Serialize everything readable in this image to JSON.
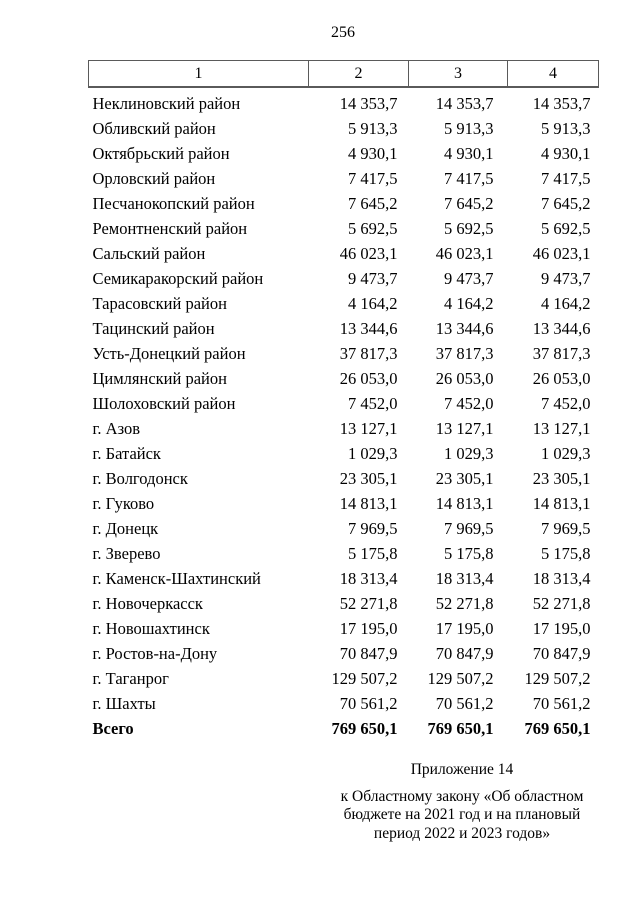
{
  "page": {
    "number": "256"
  },
  "table": {
    "headers": [
      "1",
      "2",
      "3",
      "4"
    ],
    "rows": [
      {
        "name": "Неклиновский район",
        "values": [
          "14 353,7",
          "14 353,7",
          "14 353,7"
        ]
      },
      {
        "name": "Обливский район",
        "values": [
          "5 913,3",
          "5 913,3",
          "5 913,3"
        ]
      },
      {
        "name": "Октябрьский район",
        "values": [
          "4 930,1",
          "4 930,1",
          "4 930,1"
        ]
      },
      {
        "name": "Орловский район",
        "values": [
          "7 417,5",
          "7 417,5",
          "7 417,5"
        ]
      },
      {
        "name": "Песчанокопский район",
        "values": [
          "7 645,2",
          "7 645,2",
          "7 645,2"
        ]
      },
      {
        "name": "Ремонтненский район",
        "values": [
          "5 692,5",
          "5 692,5",
          "5 692,5"
        ]
      },
      {
        "name": "Сальский район",
        "values": [
          "46 023,1",
          "46 023,1",
          "46 023,1"
        ]
      },
      {
        "name": "Семикаракорский район",
        "values": [
          "9 473,7",
          "9 473,7",
          "9 473,7"
        ]
      },
      {
        "name": "Тарасовский район",
        "values": [
          "4 164,2",
          "4 164,2",
          "4 164,2"
        ]
      },
      {
        "name": "Тацинский район",
        "values": [
          "13 344,6",
          "13 344,6",
          "13 344,6"
        ]
      },
      {
        "name": "Усть-Донецкий район",
        "values": [
          "37 817,3",
          "37 817,3",
          "37 817,3"
        ]
      },
      {
        "name": "Цимлянский район",
        "values": [
          "26 053,0",
          "26 053,0",
          "26 053,0"
        ]
      },
      {
        "name": "Шолоховский район",
        "values": [
          "7 452,0",
          "7 452,0",
          "7 452,0"
        ]
      },
      {
        "name": "г. Азов",
        "values": [
          "13 127,1",
          "13 127,1",
          "13 127,1"
        ]
      },
      {
        "name": "г. Батайск",
        "values": [
          "1 029,3",
          "1 029,3",
          "1 029,3"
        ]
      },
      {
        "name": "г. Волгодонск",
        "values": [
          "23 305,1",
          "23 305,1",
          "23 305,1"
        ]
      },
      {
        "name": "г. Гуково",
        "values": [
          "14 813,1",
          "14 813,1",
          "14 813,1"
        ]
      },
      {
        "name": "г. Донецк",
        "values": [
          "7 969,5",
          "7 969,5",
          "7 969,5"
        ]
      },
      {
        "name": "г. Зверево",
        "values": [
          "5 175,8",
          "5 175,8",
          "5 175,8"
        ]
      },
      {
        "name": "г. Каменск-Шахтинский",
        "values": [
          "18 313,4",
          "18 313,4",
          "18 313,4"
        ]
      },
      {
        "name": "г. Новочеркасск",
        "values": [
          "52 271,8",
          "52 271,8",
          "52 271,8"
        ]
      },
      {
        "name": "г. Новошахтинск",
        "values": [
          "17 195,0",
          "17 195,0",
          "17 195,0"
        ]
      },
      {
        "name": "г. Ростов-на-Дону",
        "values": [
          "70 847,9",
          "70 847,9",
          "70 847,9"
        ]
      },
      {
        "name": "г. Таганрог",
        "values": [
          "129 507,2",
          "129 507,2",
          "129 507,2"
        ]
      },
      {
        "name": "г. Шахты",
        "values": [
          "70 561,2",
          "70 561,2",
          "70 561,2"
        ]
      }
    ],
    "total": {
      "name": "Всего",
      "values": [
        "769 650,1",
        "769 650,1",
        "769 650,1"
      ]
    }
  },
  "footer": {
    "appendix": "Приложение 14",
    "law_lines": [
      "к Областному закону «Об областном",
      "бюджете на 2021 год и на плановый",
      "период 2022 и 2023 годов»"
    ]
  },
  "colors": {
    "background": "#ffffff",
    "text": "#000000",
    "border": "#5a5a5a"
  }
}
